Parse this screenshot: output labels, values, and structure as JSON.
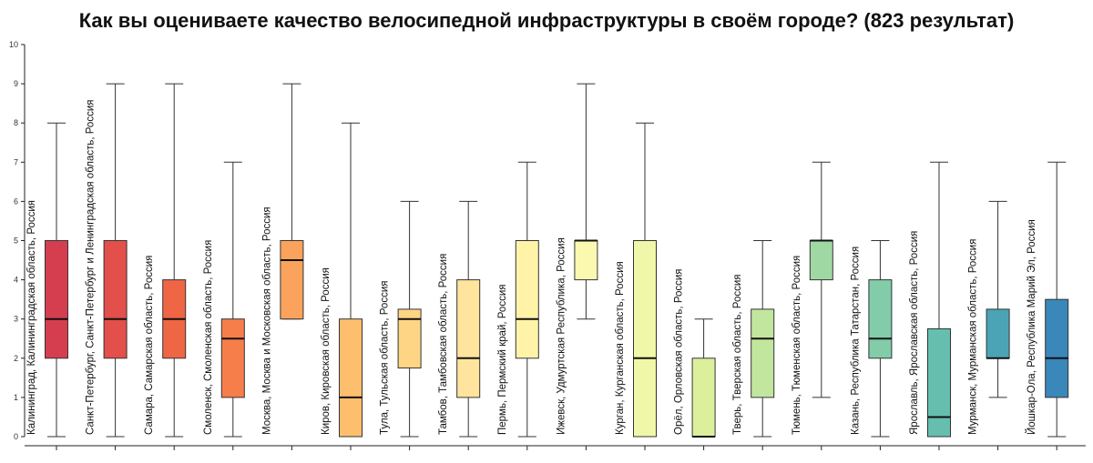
{
  "chart_data": {
    "type": "box",
    "title": "Как вы оцениваете качество велосипедной инфраструктуры в своём городе? (823 результат)",
    "ylim": [
      0,
      10
    ],
    "y_ticks": [
      "0",
      "1",
      "2",
      "3",
      "4",
      "5",
      "6",
      "7",
      "8",
      "9",
      "10"
    ],
    "grid": false,
    "boxes": [
      {
        "label": "Калининград, Калининградская область, Россия",
        "min": 0,
        "q1": 2,
        "median": 3,
        "q3": 5,
        "max": 8,
        "color": "#d53e4f"
      },
      {
        "label": "Санкт-Петербург, Санкт-Петербург и Ленинградская область, Россия",
        "min": 0,
        "q1": 2,
        "median": 3,
        "q3": 5,
        "max": 9,
        "color": "#e34f4a"
      },
      {
        "label": "Самара, Самарская область, Россия",
        "min": 0,
        "q1": 2,
        "median": 3,
        "q3": 4,
        "max": 9,
        "color": "#ef6645"
      },
      {
        "label": "Смоленск, Смоленская область, Россия",
        "min": 0,
        "q1": 1,
        "median": 2.5,
        "q3": 3,
        "max": 7,
        "color": "#f67e4b"
      },
      {
        "label": "Москва, Москва и Московская область, Россия",
        "min": 3,
        "q1": 3,
        "median": 4.5,
        "q3": 5,
        "max": 9,
        "color": "#fba35c"
      },
      {
        "label": "Киров, Кировская область, Россия",
        "min": 0,
        "q1": 0,
        "median": 1,
        "q3": 3,
        "max": 8,
        "color": "#fdbe6e"
      },
      {
        "label": "Тула, Тульская область, Россия",
        "min": 0,
        "q1": 1.75,
        "median": 3,
        "q3": 3.25,
        "max": 6,
        "color": "#fed585"
      },
      {
        "label": "Тамбов, Тамбовская область, Россия",
        "min": 0,
        "q1": 1,
        "median": 2,
        "q3": 4,
        "max": 6,
        "color": "#fee49c"
      },
      {
        "label": "Пермь, Пермский край, Россия",
        "min": 0,
        "q1": 2,
        "median": 3,
        "q3": 5,
        "max": 7,
        "color": "#fff3a8"
      },
      {
        "label": "Ижевск, Удмуртская Республика, Россия",
        "min": 3,
        "q1": 4,
        "median": 5,
        "q3": 5,
        "max": 9,
        "color": "#fbf8b0"
      },
      {
        "label": "Курган, Курганская область, Россия",
        "min": 0,
        "q1": 0,
        "median": 2,
        "q3": 5,
        "max": 8,
        "color": "#f0f7a8"
      },
      {
        "label": "Орёл, Орловская область, Россия",
        "min": 0,
        "q1": 0,
        "median": 0,
        "q3": 2,
        "max": 3,
        "color": "#dcf09c"
      },
      {
        "label": "Тверь, Тверская область, Россия",
        "min": 0,
        "q1": 1,
        "median": 2.5,
        "q3": 3.25,
        "max": 5,
        "color": "#c2e69e"
      },
      {
        "label": "Тюмень, Тюменская область, Россия",
        "min": 1,
        "q1": 4,
        "median": 5,
        "q3": 5,
        "max": 7,
        "color": "#9fd8a3"
      },
      {
        "label": "Казань, Республика Татарстан, Россия",
        "min": 0,
        "q1": 2,
        "median": 2.5,
        "q3": 4,
        "max": 5,
        "color": "#82ccaa"
      },
      {
        "label": "Ярославль, Ярославская область, Россия",
        "min": 0,
        "q1": 0,
        "median": 0.5,
        "q3": 2.75,
        "max": 7,
        "color": "#66bfae"
      },
      {
        "label": "Мурманск, Мурманская область, Россия",
        "min": 1,
        "q1": 2,
        "median": 2,
        "q3": 3.25,
        "max": 6,
        "color": "#4ba4b5"
      },
      {
        "label": "Йошкар-Ола, Республика Марий Эл, Россия",
        "min": 0,
        "q1": 1,
        "median": 2,
        "q3": 3.5,
        "max": 7,
        "color": "#3a87ba"
      }
    ]
  }
}
